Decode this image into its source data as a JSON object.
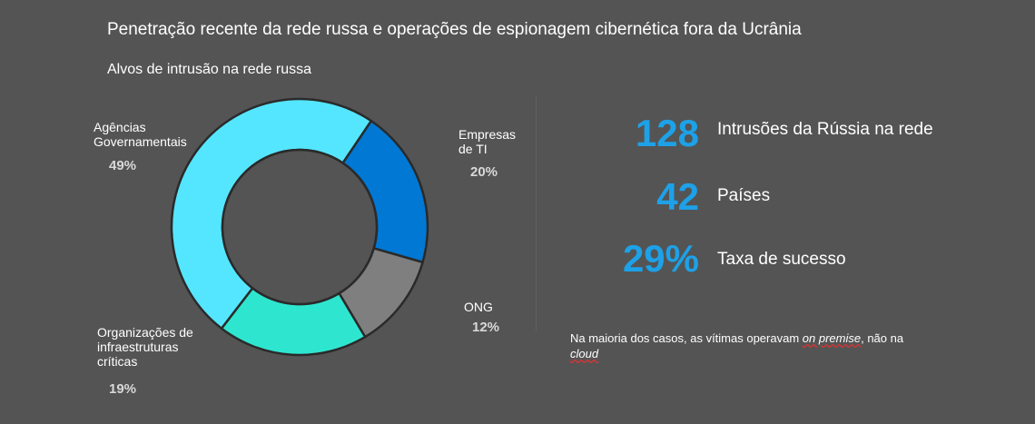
{
  "title": "Penetração recente da rede russa e operações de espionagem cibernética fora da Ucrânia",
  "chart_data": {
    "type": "pie",
    "title": "Alvos de intrusão na rede russa",
    "donut": true,
    "slices": [
      {
        "name": "Agências Governamentais",
        "label_lines": [
          "Agências",
          "Governamentais"
        ],
        "value": 49,
        "pct_label": "49%",
        "color": "#55e6ff"
      },
      {
        "name": "Empresas de TI",
        "label_lines": [
          "Empresas",
          "de TI"
        ],
        "value": 20,
        "pct_label": "20%",
        "color": "#0078d4"
      },
      {
        "name": "ONG",
        "label_lines": [
          "ONG"
        ],
        "value": 12,
        "pct_label": "12%",
        "color": "#7f7f7f"
      },
      {
        "name": "Organizações de infraestruturas críticas",
        "label_lines": [
          "Organizações de",
          "infraestruturas",
          "críticas"
        ],
        "value": 19,
        "pct_label": "19%",
        "color": "#2ee6d0"
      }
    ]
  },
  "stats": [
    {
      "value": "128",
      "label": "Intrusões da Rússia na rede"
    },
    {
      "value": "42",
      "label": "Países"
    },
    {
      "value": "29%",
      "label": "Taxa de sucesso"
    }
  ],
  "note": {
    "part1": "Na maioria dos casos, as vítimas operavam ",
    "em1": "on premise",
    "part2": ", não na ",
    "em2": "cloud"
  },
  "colors": {
    "background": "#545454",
    "accent": "#1da1e8",
    "outline": "#2a2a2a"
  }
}
